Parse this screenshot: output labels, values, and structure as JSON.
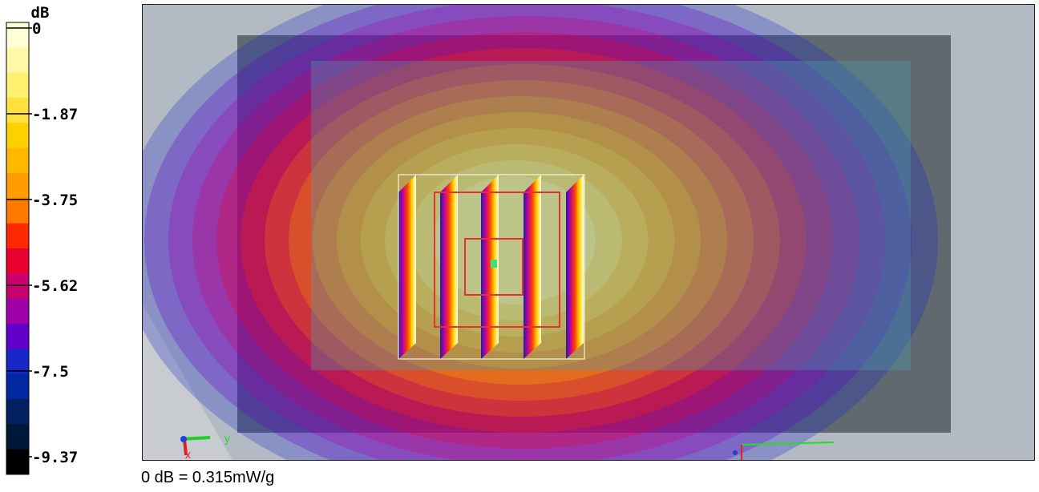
{
  "colorbar": {
    "unit": "dB",
    "ticks": [
      "0",
      "-1.87",
      "-3.75",
      "-5.62",
      "-7.5",
      "-9.37"
    ],
    "colors": [
      "#ffffd8",
      "#fff8a8",
      "#fff070",
      "#ffe040",
      "#ffd000",
      "#ffb800",
      "#ff9c00",
      "#ff7800",
      "#ff2800",
      "#e80030",
      "#c80070",
      "#a000a8",
      "#6000c8",
      "#1828c8",
      "#0028a0",
      "#002060",
      "#001838",
      "#000000"
    ]
  },
  "view": {
    "axis_y": "y",
    "axis_x": "x"
  },
  "footer": "0 dB = 0.315mW/g"
}
